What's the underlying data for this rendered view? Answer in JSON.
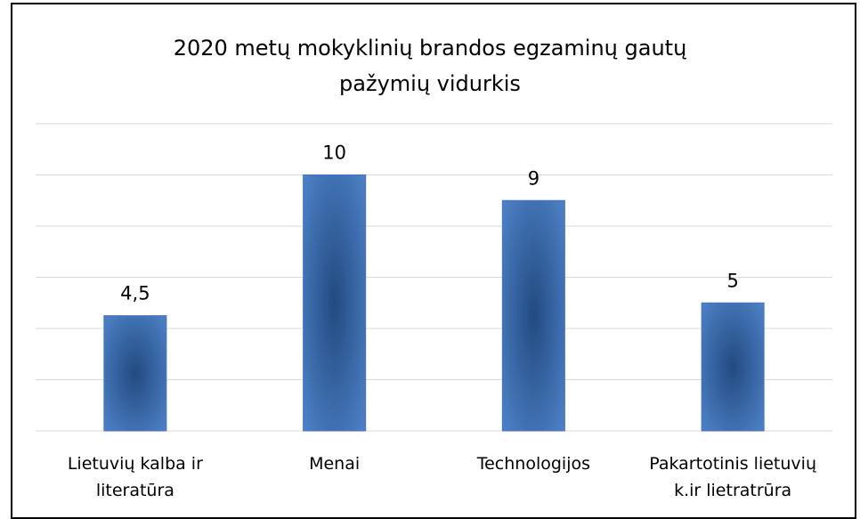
{
  "chart_data": {
    "type": "bar",
    "title": "2020 metų mokyklinių brandos egzaminų gautų pažymių vidurkis",
    "categories": [
      "Lietuvių kalba ir literatūra",
      "Menai",
      "Technologijos",
      "Pakartotinis lietuvių k.ir lietratrūra"
    ],
    "values": [
      4.5,
      10,
      9,
      5
    ],
    "value_labels": [
      "4,5",
      "10",
      "9",
      "5"
    ],
    "color": "#4472c4",
    "ylim": [
      0,
      12
    ],
    "yticks": [
      0,
      2,
      4,
      6,
      8,
      10,
      12
    ],
    "grid": true
  }
}
